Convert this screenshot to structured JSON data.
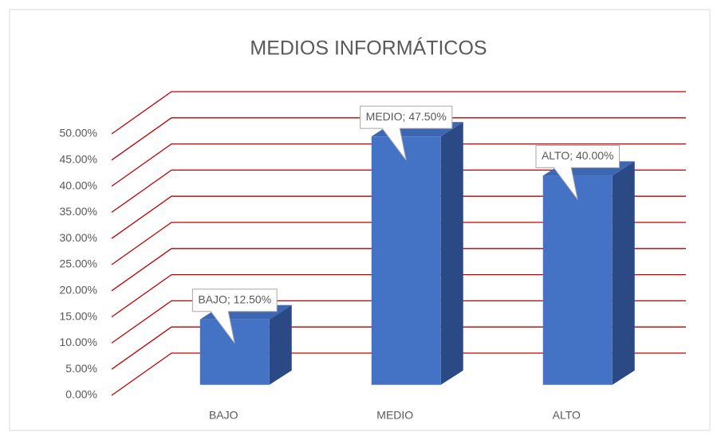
{
  "chart_data": {
    "type": "bar3d",
    "title": "MEDIOS INFORMÁTICOS",
    "categories": [
      "BAJO",
      "MEDIO",
      "ALTO"
    ],
    "values": [
      12.5,
      47.5,
      40
    ],
    "value_labels": [
      "BAJO; 12.50%",
      "MEDIO; 47.50%",
      "ALTO; 40.00%"
    ],
    "color": "#4472c4",
    "grid_color": "#c00000",
    "ylim": [
      0,
      50
    ],
    "yticks": [
      {
        "value": 0,
        "label": "0.00%"
      },
      {
        "value": 5,
        "label": "5.00%"
      },
      {
        "value": 10,
        "label": "10.00%"
      },
      {
        "value": 15,
        "label": "15.00%"
      },
      {
        "value": 20,
        "label": "20.00%"
      },
      {
        "value": 25,
        "label": "25.00%"
      },
      {
        "value": 30,
        "label": "30.00%"
      },
      {
        "value": 35,
        "label": "35.00%"
      },
      {
        "value": 40,
        "label": "40.00%"
      },
      {
        "value": 45,
        "label": "45.00%"
      },
      {
        "value": 50,
        "label": "50.00%"
      }
    ],
    "grid": true
  }
}
